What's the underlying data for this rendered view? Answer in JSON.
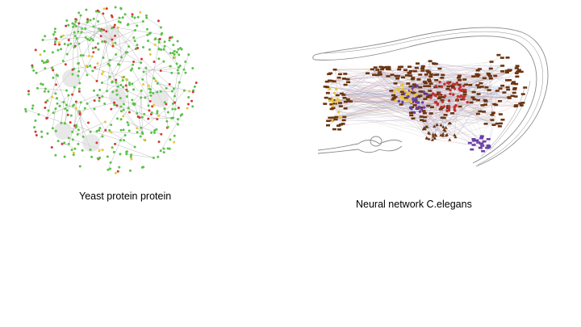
{
  "captions": {
    "yeast": "Yeast protein protein",
    "worm": "Neural network C.elegans"
  },
  "colors": {
    "yeast_node_primary": "#5cc24a",
    "yeast_node_accent": "#d23a3a",
    "yeast_node_minor": "#e8c63a",
    "yeast_edge": "#9a9a9a",
    "worm_outline": "#8a8a8a",
    "worm_node_brown": "#6b3410",
    "worm_node_yellow": "#e8c63a",
    "worm_node_purple": "#6a3fa8",
    "worm_node_red": "#c23030"
  }
}
